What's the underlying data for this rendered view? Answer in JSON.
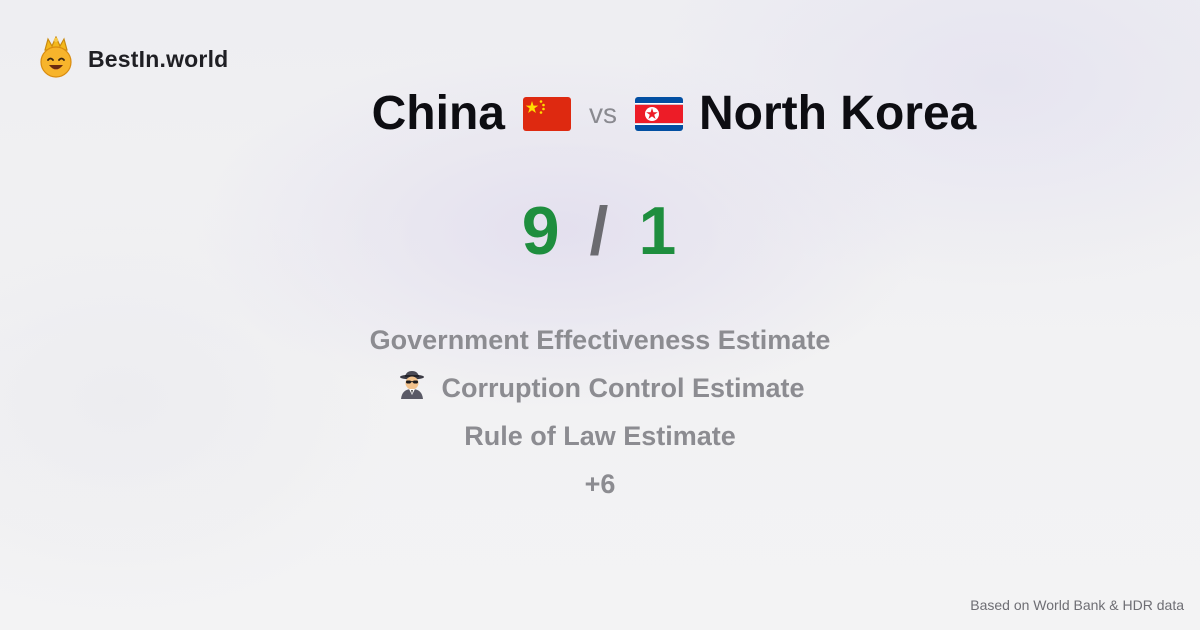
{
  "brand": {
    "name": "BestIn.world",
    "icon": "crown-smiley-icon"
  },
  "comparison": {
    "left_country": "China",
    "vs_label": "vs",
    "right_country": "North Korea",
    "left_flag": "china-flag-icon",
    "right_flag": "north-korea-flag-icon"
  },
  "score": {
    "left": "9",
    "separator": "/",
    "right": "1",
    "color": "#1e8e3e"
  },
  "metrics": [
    {
      "label": "Government Effectiveness Estimate"
    },
    {
      "label": "Corruption Control Estimate",
      "icon": "spy-icon"
    },
    {
      "label": "Rule of Law Estimate"
    },
    {
      "label": "+6"
    }
  ],
  "footer": {
    "source": "Based on World Bank & HDR data"
  }
}
